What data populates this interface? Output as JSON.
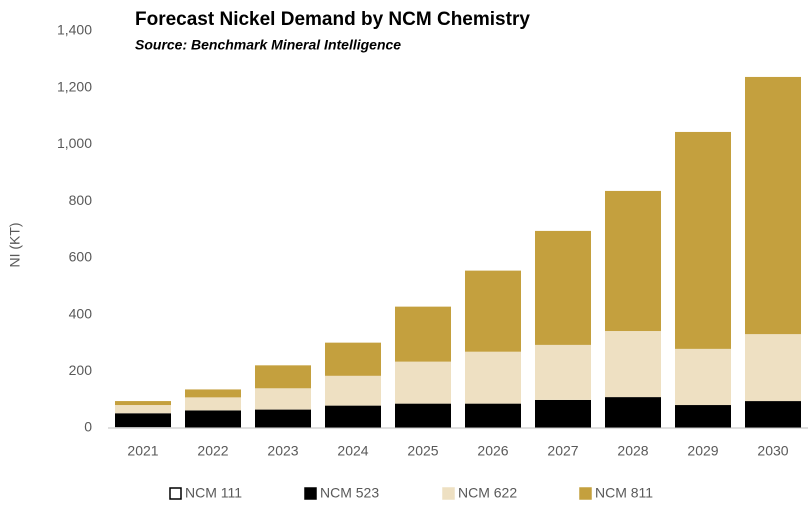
{
  "chart_data": {
    "type": "stacked_bar",
    "title": "Forecast Nickel Demand by NCM Chemistry",
    "subtitle": "Source: Benchmark Mineral Intelligence",
    "y_label": "NI (KT)",
    "categories": [
      "2021",
      "2022",
      "2023",
      "2024",
      "2025",
      "2026",
      "2027",
      "2028",
      "2029",
      "2030"
    ],
    "series": [
      {
        "name": "NCM 111",
        "color": "#ffffff",
        "values": [
          3,
          2,
          2,
          1,
          1,
          1,
          0,
          0,
          0,
          0
        ]
      },
      {
        "name": "NCM 523",
        "color": "#000000",
        "values": [
          49,
          60,
          63,
          78,
          85,
          85,
          99,
          109,
          81,
          95
        ]
      },
      {
        "name": "NCM 622",
        "color": "#eee0c2",
        "values": [
          29,
          46,
          75,
          105,
          148,
          183,
          194,
          233,
          198,
          236
        ]
      },
      {
        "name": "NCM 811",
        "color": "#c4a03e",
        "values": [
          14,
          28,
          81,
          117,
          194,
          286,
          402,
          494,
          765,
          907
        ]
      }
    ],
    "ylim": [
      0,
      1400
    ],
    "yticks": [
      0,
      200,
      400,
      600,
      800,
      {
        "value": 1000,
        "label": "1,000"
      },
      {
        "value": 1200,
        "label": "1,200"
      },
      {
        "value": 1400,
        "label": "1,400"
      }
    ],
    "grid": false,
    "legend": "bottom"
  }
}
